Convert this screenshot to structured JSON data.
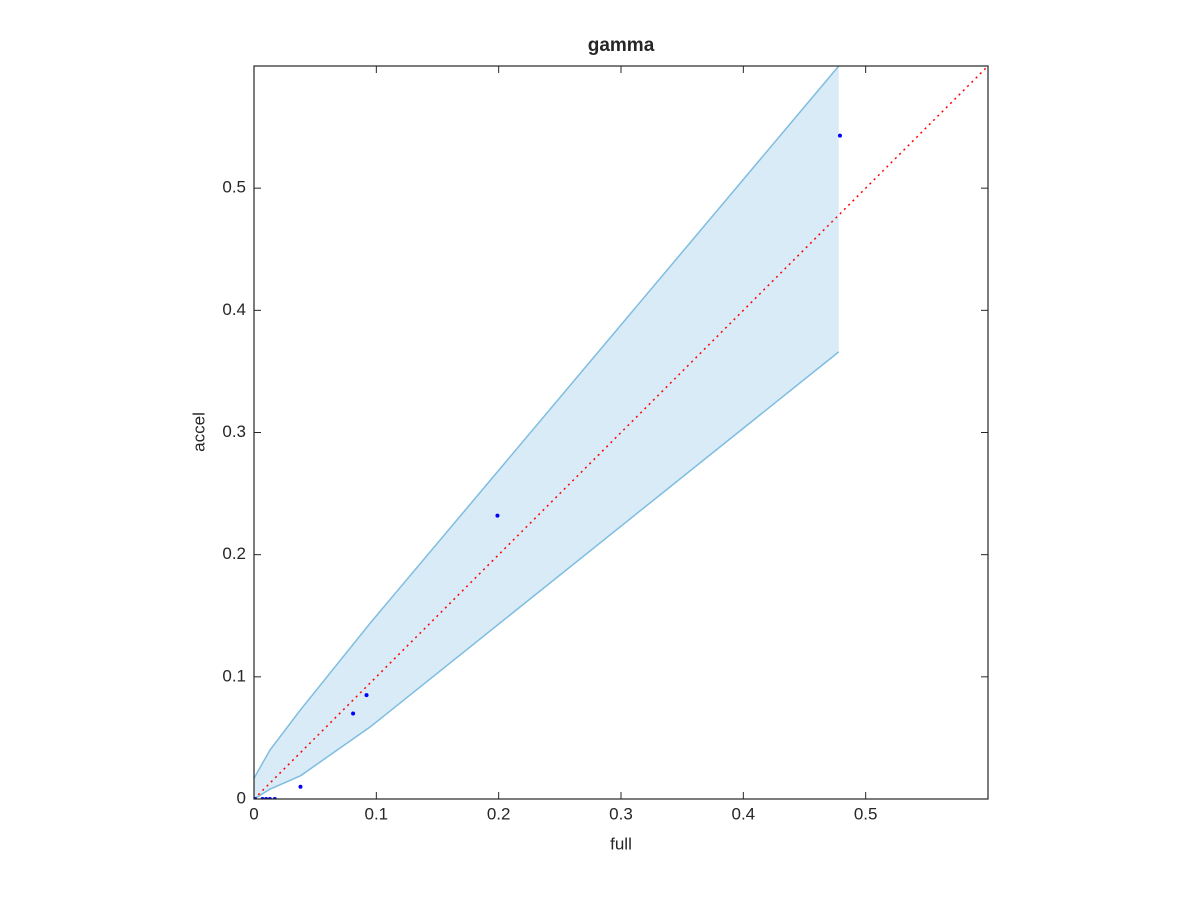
{
  "chart_data": {
    "type": "scatter",
    "title": "gamma",
    "x_label": "full",
    "y_label": "accel",
    "xlim": [
      0,
      0.6
    ],
    "ylim": [
      0,
      0.6
    ],
    "xticks": [
      0,
      0.1,
      0.2,
      0.3,
      0.4,
      0.5
    ],
    "yticks": [
      0,
      0.1,
      0.2,
      0.3,
      0.4,
      0.5
    ],
    "grid": false,
    "band": {
      "color": "#7fbde0",
      "x": [
        0,
        0.013,
        0.038,
        0.095,
        0.478
      ],
      "upper": [
        0.017,
        0.04,
        0.073,
        0.144,
        0.6
      ],
      "lower": [
        0,
        0.008,
        0.019,
        0.059,
        0.366
      ]
    },
    "reference_line": {
      "color": "#ff0000",
      "x": [
        0,
        0.6
      ],
      "values": [
        0,
        0.6
      ]
    },
    "points": {
      "color": "#0000ff",
      "x": [
        0.001,
        0.007,
        0.01,
        0.013,
        0.017,
        0.038,
        0.081,
        0.092,
        0.199,
        0.479
      ],
      "values": [
        0,
        0,
        0,
        0,
        0,
        0.01,
        0.07,
        0.085,
        0.232,
        0.543
      ]
    }
  }
}
